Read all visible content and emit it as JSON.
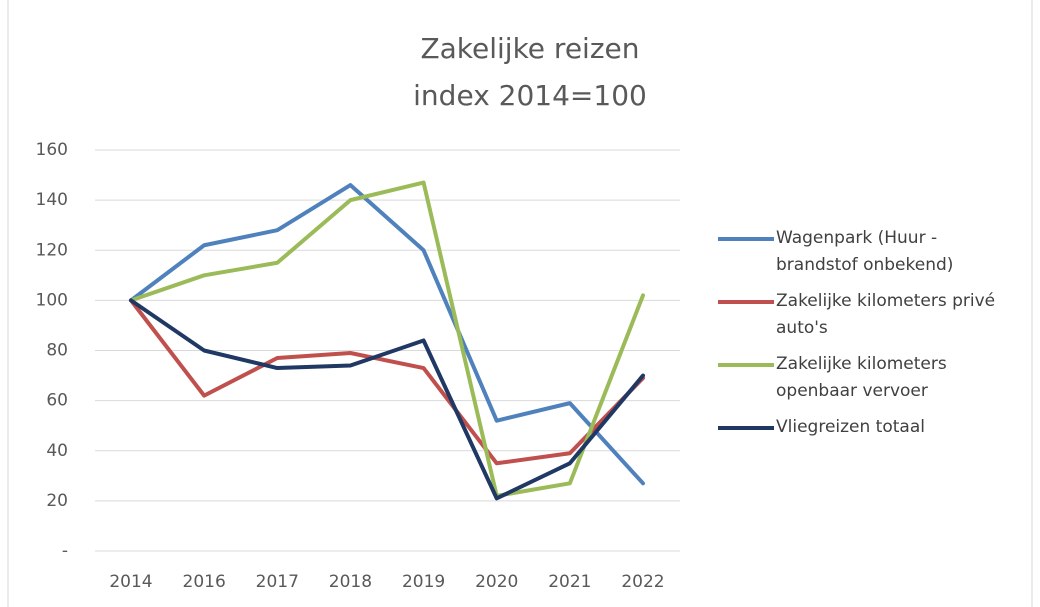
{
  "chart_data": {
    "type": "line",
    "title": "Zakelijke reizen",
    "subtitle": "index 2014=100",
    "categories": [
      "2014",
      "2016",
      "2017",
      "2018",
      "2019",
      "2020",
      "2021",
      "2022"
    ],
    "series": [
      {
        "name": "Wagenpark (Huur - brandstof onbekend)",
        "color": "#4f81bd",
        "values": [
          100,
          122,
          128,
          146,
          120,
          52,
          59,
          27
        ]
      },
      {
        "name": "Zakelijke kilometers privé auto's",
        "color": "#c0504d",
        "values": [
          100,
          62,
          77,
          79,
          73,
          35,
          39,
          69
        ]
      },
      {
        "name": "Zakelijke kilometers openbaar vervoer",
        "color": "#9bbb59",
        "values": [
          100,
          110,
          115,
          140,
          147,
          22,
          27,
          102
        ]
      },
      {
        "name": "Vliegreizen totaal",
        "color": "#1f3864",
        "values": [
          100,
          80,
          73,
          74,
          84,
          21,
          35,
          70
        ]
      }
    ],
    "ylim": [
      0,
      160
    ],
    "yticks": [
      {
        "value": 0,
        "label": "-"
      },
      20,
      40,
      60,
      80,
      100,
      120,
      140,
      160
    ],
    "grid": true,
    "legend": "right"
  }
}
